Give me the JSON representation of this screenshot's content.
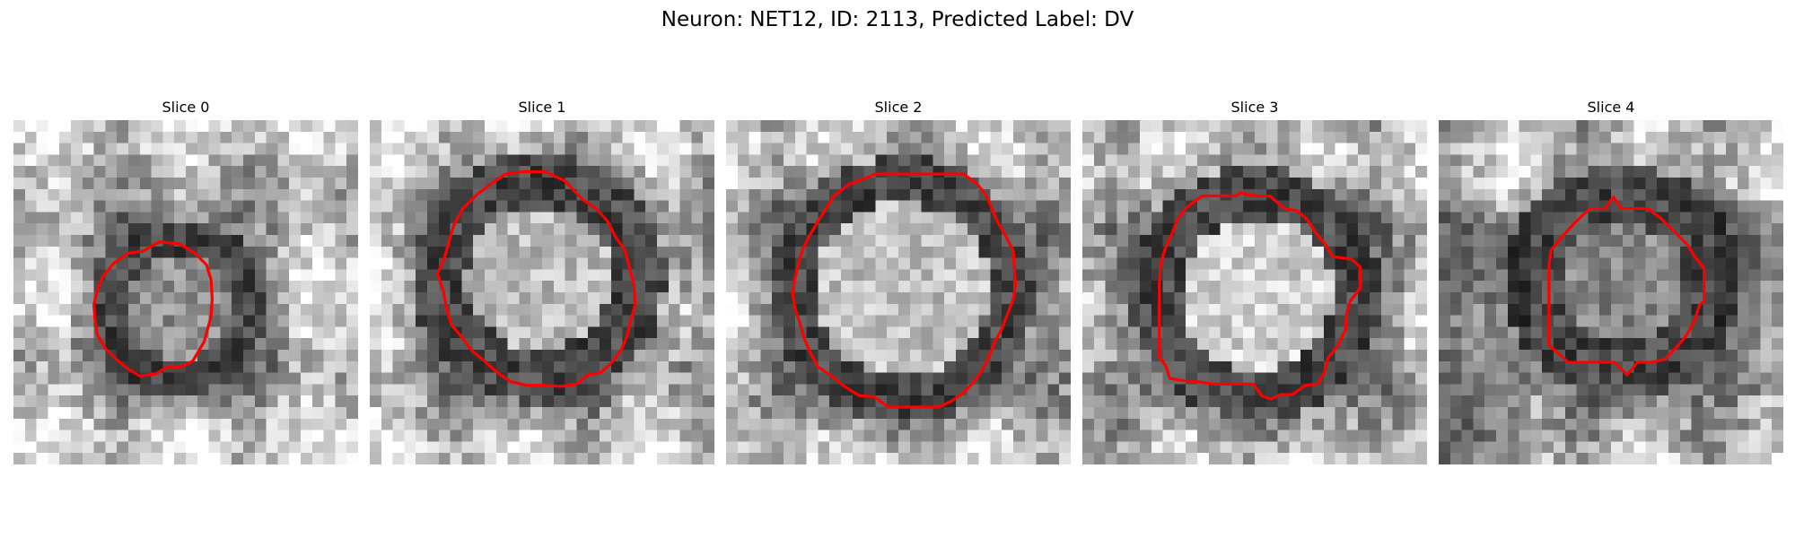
{
  "figure": {
    "title": "Neuron: NET12, ID: 2113, Predicted Label: DV"
  },
  "panels": [
    {
      "title": "Slice 0"
    },
    {
      "title": "Slice 1"
    },
    {
      "title": "Slice 2"
    },
    {
      "title": "Slice 3"
    },
    {
      "title": "Slice 4"
    }
  ],
  "colors": {
    "contour": "#ff0000",
    "background": "#ffffff"
  }
}
